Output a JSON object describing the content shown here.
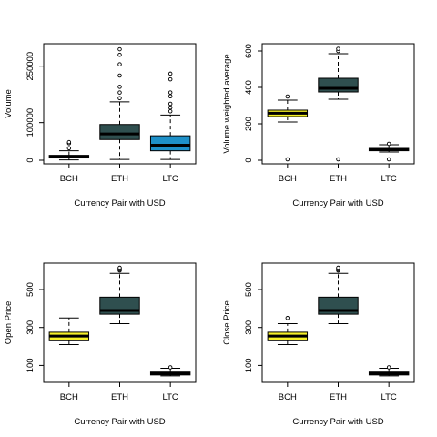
{
  "chart_data": [
    {
      "type": "boxplot",
      "xlabel": "Currency Pair with USD",
      "ylabel": "Volume",
      "ylim": [
        0,
        300000
      ],
      "yticks": [
        0,
        100000,
        250000
      ],
      "ytick_labels": [
        "0",
        "100000",
        "250000"
      ],
      "categories": [
        "BCH",
        "ETH",
        "LTC"
      ],
      "colors": [
        "#ffffff",
        "#2f4f4f",
        "#1e90c8"
      ],
      "boxes": [
        {
          "label": "BCH",
          "whisker_low": 1000,
          "q1": 6000,
          "median": 9000,
          "q3": 13000,
          "whisker_high": 25000,
          "outliers": [
            32000,
            45000,
            48000
          ]
        },
        {
          "label": "ETH",
          "whisker_low": 2000,
          "q1": 55000,
          "median": 70000,
          "q3": 95000,
          "whisker_high": 155000,
          "outliers": [
            165000,
            180000,
            195000,
            225000,
            255000,
            280000,
            295000
          ]
        },
        {
          "label": "LTC",
          "whisker_low": 2000,
          "q1": 25000,
          "median": 40000,
          "q3": 65000,
          "whisker_high": 120000,
          "outliers": [
            130000,
            140000,
            150000,
            170000,
            180000,
            215000,
            230000
          ]
        }
      ]
    },
    {
      "type": "boxplot",
      "xlabel": "Currency Pair with USD",
      "ylabel": "Volume weighted average",
      "ylim": [
        0,
        620
      ],
      "yticks": [
        0,
        200,
        400,
        600
      ],
      "ytick_labels": [
        "0",
        "200",
        "400",
        "600"
      ],
      "categories": [
        "BCH",
        "ETH",
        "LTC"
      ],
      "colors": [
        "#f5f028",
        "#2f4f4f",
        "#ffffff"
      ],
      "boxes": [
        {
          "label": "BCH",
          "whisker_low": 210,
          "q1": 240,
          "median": 258,
          "q3": 275,
          "whisker_high": 330,
          "outliers": [
            350,
            5
          ]
        },
        {
          "label": "ETH",
          "whisker_low": 335,
          "q1": 375,
          "median": 395,
          "q3": 450,
          "whisker_high": 585,
          "outliers": [
            600,
            612,
            5
          ]
        },
        {
          "label": "LTC",
          "whisker_low": 45,
          "q1": 52,
          "median": 58,
          "q3": 65,
          "whisker_high": 85,
          "outliers": [
            90,
            5
          ]
        }
      ]
    },
    {
      "type": "boxplot",
      "xlabel": "Currency Pair with USD",
      "ylabel": "Open Price",
      "ylim": [
        30,
        620
      ],
      "yticks": [
        100,
        300,
        500
      ],
      "ytick_labels": [
        "100",
        "300",
        "500"
      ],
      "categories": [
        "BCH",
        "ETH",
        "LTC"
      ],
      "colors": [
        "#f5f028",
        "#2f4f4f",
        "#ffffff"
      ],
      "boxes": [
        {
          "label": "BCH",
          "whisker_low": 210,
          "q1": 230,
          "median": 255,
          "q3": 275,
          "whisker_high": 350,
          "outliers": []
        },
        {
          "label": "ETH",
          "whisker_low": 320,
          "q1": 370,
          "median": 390,
          "q3": 460,
          "whisker_high": 585,
          "outliers": [
            600,
            605,
            610,
            615
          ]
        },
        {
          "label": "LTC",
          "whisker_low": 45,
          "q1": 50,
          "median": 58,
          "q3": 65,
          "whisker_high": 85,
          "outliers": [
            90
          ]
        }
      ]
    },
    {
      "type": "boxplot",
      "xlabel": "Currency Pair with USD",
      "ylabel": "Close Price",
      "ylim": [
        30,
        620
      ],
      "yticks": [
        100,
        300,
        500
      ],
      "ytick_labels": [
        "100",
        "300",
        "500"
      ],
      "categories": [
        "BCH",
        "ETH",
        "LTC"
      ],
      "colors": [
        "#f5f028",
        "#2f4f4f",
        "#ffffff"
      ],
      "boxes": [
        {
          "label": "BCH",
          "whisker_low": 210,
          "q1": 230,
          "median": 255,
          "q3": 275,
          "whisker_high": 320,
          "outliers": [
            350
          ]
        },
        {
          "label": "ETH",
          "whisker_low": 320,
          "q1": 370,
          "median": 390,
          "q3": 460,
          "whisker_high": 585,
          "outliers": [
            600,
            605,
            610,
            615
          ]
        },
        {
          "label": "LTC",
          "whisker_low": 45,
          "q1": 50,
          "median": 58,
          "q3": 65,
          "whisker_high": 85,
          "outliers": [
            90
          ]
        }
      ]
    }
  ]
}
